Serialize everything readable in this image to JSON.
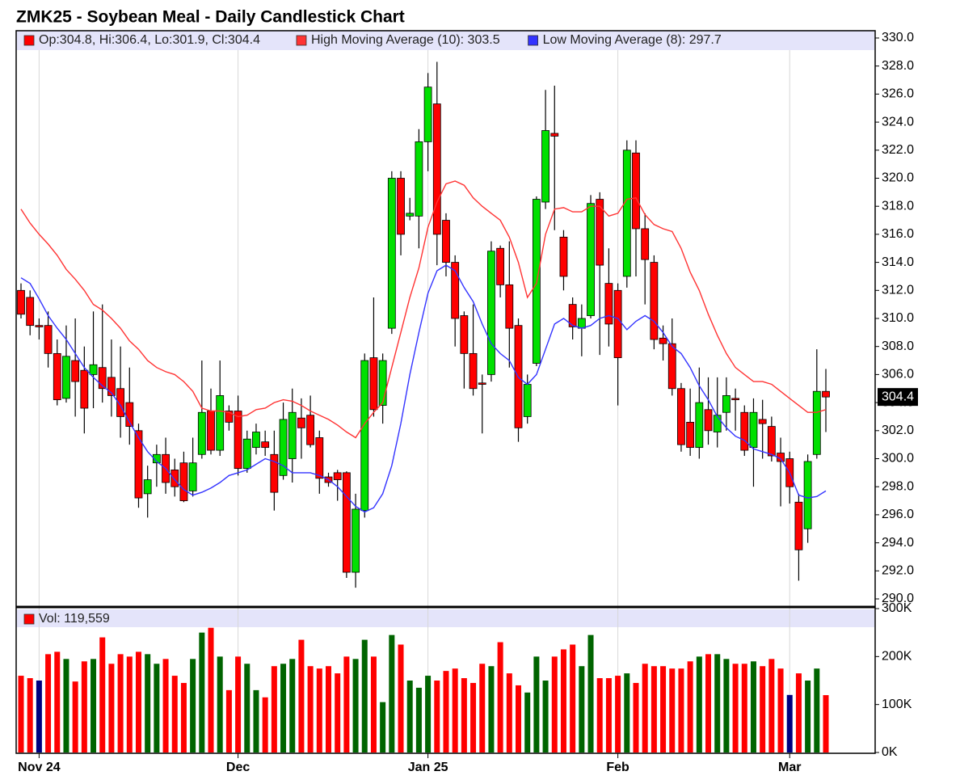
{
  "chart_data": [
    {
      "type": "candlestick",
      "title": "ZMK25 - Soybean Meal - Daily Candlestick Chart",
      "legend_label": "Op:304.8, Hi:306.4, Lo:301.9, Cl:304.4",
      "color": "#ff0000",
      "up_color": "#00e000",
      "down_color": "#ff0000",
      "categories": [
        null,
        null,
        "Nov 24",
        null,
        null,
        null,
        null,
        null,
        null,
        null,
        null,
        null,
        null,
        null,
        null,
        null,
        null,
        null,
        null,
        null,
        null,
        null,
        null,
        null,
        "Dec",
        null,
        null,
        null,
        null,
        null,
        null,
        null,
        null,
        null,
        null,
        null,
        null,
        null,
        null,
        null,
        null,
        null,
        null,
        null,
        null,
        "Jan 25",
        null,
        null,
        null,
        null,
        null,
        null,
        null,
        null,
        null,
        null,
        null,
        null,
        null,
        null,
        null,
        null,
        null,
        null,
        null,
        null,
        "Feb",
        null,
        null,
        null,
        null,
        null,
        null,
        null,
        null,
        null,
        null,
        null,
        null,
        null,
        null,
        null,
        null,
        null,
        null,
        "Mar",
        null,
        null,
        null,
        null
      ],
      "open": [
        312.0,
        311.5,
        309.5,
        309.5,
        307.5,
        304.3,
        307.0,
        306.3,
        306.0,
        306.5,
        305.8,
        305.0,
        304.0,
        302.0,
        297.5,
        299.7,
        300.3,
        299.2,
        299.7,
        297.7,
        300.3,
        303.4,
        300.6,
        303.4,
        303.4,
        299.3,
        300.8,
        301.2,
        300.3,
        298.8,
        300.0,
        302.9,
        303.1,
        301.5,
        298.7,
        299.0,
        299.0,
        291.9,
        296.3,
        307.2,
        303.8,
        309.3,
        320.0,
        317.3,
        317.3,
        322.6,
        325.3,
        317.0,
        314.0,
        310.2,
        307.5,
        305.4,
        306.0,
        315.0,
        312.4,
        309.5,
        303.0,
        306.8,
        318.3,
        323.2,
        315.8,
        311.0,
        309.3,
        310.2,
        318.5,
        312.5,
        312.0,
        313.0,
        321.8,
        316.4,
        314.0,
        308.6,
        308.2,
        305.0,
        302.6,
        300.8,
        303.5,
        301.9,
        303.3,
        304.3,
        303.3,
        300.8,
        302.8,
        302.3,
        300.4,
        300.0,
        296.9,
        295.0,
        300.3,
        304.8
      ],
      "high": [
        312.5,
        312,
        310,
        310.5,
        308.5,
        309.5,
        310,
        308,
        310.5,
        311,
        308.5,
        308,
        306.5,
        302.5,
        299.5,
        301,
        301.5,
        300,
        300.5,
        301.5,
        307,
        305,
        307,
        303.8,
        304.5,
        302,
        302.5,
        302,
        302,
        304,
        305,
        304.3,
        304.5,
        302,
        299,
        299.2,
        299.1,
        297.5,
        307.5,
        311.5,
        307.5,
        320.5,
        320.5,
        318.6,
        323.5,
        327.5,
        328.3,
        317.5,
        314.5,
        310.5,
        311,
        306,
        315.5,
        315.2,
        315.5,
        310,
        306,
        318.7,
        326.3,
        326.6,
        316.3,
        311.5,
        311,
        318.8,
        319,
        315,
        312.5,
        322.7,
        322.7,
        317.5,
        314.5,
        309.5,
        310,
        305.4,
        305,
        306.5,
        305.8,
        305.8,
        305.8,
        305,
        303.8,
        304.3,
        304.2,
        303,
        301.5,
        300.5,
        297.5,
        300.3,
        307.8,
        306.4
      ],
      "low": [
        310,
        308.8,
        308.5,
        306.5,
        303.8,
        304,
        303,
        301.8,
        303.6,
        304,
        303,
        301.5,
        301,
        296.5,
        295.8,
        298,
        297.5,
        297.3,
        296.9,
        297.3,
        300,
        300.3,
        300.2,
        302,
        298.8,
        299,
        300.3,
        300.2,
        296.3,
        298.5,
        298.3,
        300,
        300.8,
        297.5,
        298,
        297,
        291.5,
        290.8,
        295.8,
        303,
        302.5,
        308.9,
        314.5,
        317,
        315,
        320.5,
        313.8,
        313,
        308,
        305,
        304.5,
        301.8,
        305.5,
        311.5,
        306.5,
        301.2,
        302.5,
        306.6,
        317.8,
        316.3,
        312,
        308.5,
        307.3,
        310,
        307.4,
        308,
        303.8,
        312.2,
        313,
        311,
        307.8,
        307,
        304.5,
        300.5,
        300.2,
        300,
        301,
        300.8,
        302,
        302,
        300.2,
        298,
        300,
        299.8,
        296.6,
        296.8,
        291.3,
        294,
        300,
        301.9
      ],
      "close": [
        310.3,
        309.5,
        309.4,
        307.5,
        304.2,
        307.3,
        305.5,
        303.6,
        306.7,
        305,
        304.5,
        303,
        302.3,
        297.2,
        298.5,
        300.3,
        298.3,
        298,
        297,
        299.7,
        303.3,
        300.6,
        304.5,
        302.6,
        299.3,
        301.4,
        301.9,
        300.8,
        297.6,
        302.8,
        303.3,
        302.2,
        301,
        298.6,
        298.3,
        298.5,
        291.9,
        296.4,
        307,
        303.5,
        307,
        320,
        316,
        317.5,
        322.6,
        326.5,
        316,
        314,
        310,
        307.5,
        305,
        305.3,
        314.8,
        312.4,
        309.3,
        302.2,
        305.3,
        318.5,
        323.4,
        323,
        313,
        309.4,
        310,
        318.2,
        313.8,
        309.6,
        307.2,
        322,
        316.4,
        314.2,
        308.5,
        308.2,
        305,
        301,
        300.8,
        304,
        302,
        303.1,
        304.5,
        304.2,
        300.6,
        303.3,
        302.5,
        300.2,
        299.8,
        298,
        293.5,
        299.8,
        304.8,
        304.4
      ],
      "series": [
        {
          "name": "High Moving Average (10): 303.5",
          "color": "#ff3333",
          "values": [
            317.8,
            316.8,
            316,
            315.3,
            314.5,
            313.5,
            312.8,
            312,
            311,
            310.6,
            310,
            309.3,
            308.4,
            307.8,
            307,
            306.5,
            306.2,
            306,
            305.5,
            304.8,
            303.6,
            303.4,
            303.4,
            303.3,
            303,
            303.1,
            303.5,
            303.6,
            304,
            304.2,
            304.1,
            303.8,
            303.4,
            303.1,
            302.8,
            302.4,
            301.9,
            301.5,
            302.5,
            303.3,
            304,
            306.5,
            309,
            311.5,
            313.6,
            316.5,
            318.3,
            319.6,
            319.8,
            319.5,
            318.6,
            318,
            317.5,
            317,
            315.8,
            314,
            311.5,
            312.5,
            316,
            317.8,
            317.9,
            317.6,
            317.6,
            318,
            318,
            317.3,
            317.5,
            318.5,
            318.6,
            317.4,
            316.7,
            316.4,
            316.2,
            315,
            313.3,
            312,
            310.3,
            308.8,
            307.5,
            306.5,
            306,
            305.5,
            305.5,
            305.3,
            304.8,
            304.3,
            303.8,
            303.3,
            303.3,
            303.5
          ]
        },
        {
          "name": "Low Moving Average (8): 297.7",
          "color": "#3333ff",
          "values": [
            312.9,
            312.5,
            311.4,
            310.2,
            309.3,
            308.5,
            307.5,
            306.5,
            305.8,
            305.2,
            304.7,
            303.8,
            302.6,
            301.5,
            300.5,
            299.8,
            299.3,
            298.5,
            297.8,
            297.4,
            297.6,
            297.9,
            298.3,
            298.8,
            299,
            299.2,
            299.6,
            300,
            299.8,
            299.5,
            299,
            299,
            299,
            298.8,
            298.5,
            298,
            297.3,
            296.6,
            296.2,
            296.5,
            297.5,
            299.5,
            302.5,
            306,
            309,
            311.8,
            313.4,
            313.8,
            313.4,
            312.2,
            311.2,
            309.6,
            308.2,
            307.5,
            307,
            305.8,
            305.3,
            306,
            307.8,
            309.6,
            310,
            309.5,
            309.3,
            309.5,
            310,
            310.2,
            310,
            309.2,
            309.8,
            310.2,
            309.8,
            309,
            308,
            307.5,
            306.5,
            305.2,
            304.2,
            303,
            302.2,
            301.6,
            301.3,
            300.7,
            300.5,
            300.3,
            300,
            299,
            297.4,
            297.2,
            297.3,
            297.7
          ]
        }
      ],
      "ylim": [
        290,
        330
      ],
      "yticks": [
        {
          "value": 290,
          "label": "290.0"
        },
        {
          "value": 292,
          "label": "292.0"
        },
        {
          "value": 294,
          "label": "294.0"
        },
        {
          "value": 296,
          "label": "296.0"
        },
        {
          "value": 298,
          "label": "298.0"
        },
        {
          "value": 300,
          "label": "300.0"
        },
        {
          "value": 302,
          "label": "302.0"
        },
        {
          "value": 304,
          "label": "304.0"
        },
        {
          "value": 306,
          "label": "306.0"
        },
        {
          "value": 308,
          "label": "308.0"
        },
        {
          "value": 310,
          "label": "310.0"
        },
        {
          "value": 312,
          "label": "312.0"
        },
        {
          "value": 314,
          "label": "314.0"
        },
        {
          "value": 316,
          "label": "316.0"
        },
        {
          "value": 318,
          "label": "318.0"
        },
        {
          "value": 320,
          "label": "320.0"
        },
        {
          "value": 322,
          "label": "322.0"
        },
        {
          "value": 324,
          "label": "324.0"
        },
        {
          "value": 326,
          "label": "326.0"
        },
        {
          "value": 328,
          "label": "328.0"
        },
        {
          "value": 330,
          "label": "330.0"
        }
      ]
    },
    {
      "type": "bar",
      "name": "Vol: 119,559",
      "color": "#ff0000",
      "values": [
        160000,
        155000,
        150000,
        205000,
        210000,
        195000,
        148000,
        190000,
        195000,
        240000,
        185000,
        205000,
        200000,
        210000,
        205000,
        185000,
        195000,
        160000,
        145000,
        195000,
        250000,
        260000,
        200000,
        130000,
        200000,
        185000,
        130000,
        115000,
        180000,
        185000,
        195000,
        235000,
        180000,
        175000,
        180000,
        165000,
        200000,
        195000,
        235000,
        200000,
        105000,
        245000,
        225000,
        150000,
        135000,
        160000,
        150000,
        170000,
        175000,
        155000,
        145000,
        185000,
        180000,
        230000,
        165000,
        140000,
        125000,
        200000,
        150000,
        200000,
        215000,
        225000,
        180000,
        245000,
        155000,
        155000,
        160000,
        165000,
        145000,
        185000,
        180000,
        180000,
        175000,
        175000,
        190000,
        200000,
        205000,
        205000,
        195000,
        185000,
        185000,
        190000,
        180000,
        195000,
        175000,
        120000,
        165000,
        150000,
        175000,
        119559
      ],
      "colors": [
        "#ff0000",
        "#ff0000",
        "#000080",
        "#ff0000",
        "#ff0000",
        "#006400",
        "#ff0000",
        "#ff0000",
        "#006400",
        "#ff0000",
        "#ff0000",
        "#ff0000",
        "#ff0000",
        "#ff0000",
        "#006400",
        "#006400",
        "#ff0000",
        "#ff0000",
        "#ff0000",
        "#006400",
        "#006400",
        "#ff0000",
        "#006400",
        "#ff0000",
        "#ff0000",
        "#006400",
        "#006400",
        "#ff0000",
        "#ff0000",
        "#006400",
        "#006400",
        "#ff0000",
        "#ff0000",
        "#ff0000",
        "#ff0000",
        "#ff0000",
        "#ff0000",
        "#006400",
        "#006400",
        "#ff0000",
        "#006400",
        "#006400",
        "#ff0000",
        "#006400",
        "#006400",
        "#006400",
        "#ff0000",
        "#ff0000",
        "#ff0000",
        "#ff0000",
        "#ff0000",
        "#ff0000",
        "#006400",
        "#ff0000",
        "#ff0000",
        "#ff0000",
        "#006400",
        "#006400",
        "#006400",
        "#ff0000",
        "#ff0000",
        "#ff0000",
        "#006400",
        "#006400",
        "#ff0000",
        "#ff0000",
        "#ff0000",
        "#006400",
        "#ff0000",
        "#ff0000",
        "#ff0000",
        "#ff0000",
        "#ff0000",
        "#ff0000",
        "#ff0000",
        "#006400",
        "#ff0000",
        "#006400",
        "#006400",
        "#ff0000",
        "#ff0000",
        "#006400",
        "#ff0000",
        "#ff0000",
        "#ff0000",
        "#000080",
        "#ff0000",
        "#006400",
        "#006400",
        "#ff0000"
      ],
      "ylim": [
        0,
        300000
      ],
      "yticks": [
        {
          "value": 0,
          "label": "0K"
        },
        {
          "value": 100000,
          "label": "100K"
        },
        {
          "value": 200000,
          "label": "200K"
        },
        {
          "value": 300000,
          "label": "300K"
        }
      ]
    }
  ]
}
